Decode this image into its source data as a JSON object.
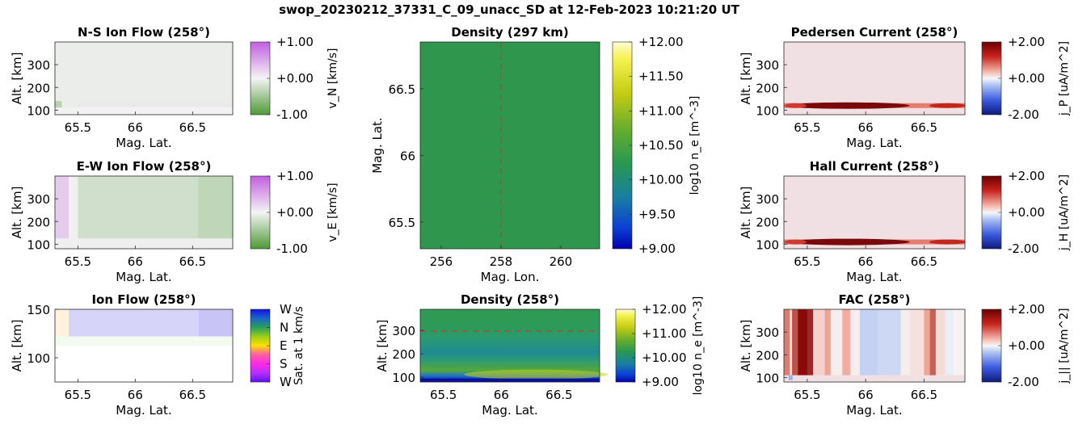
{
  "figure": {
    "title": "swop_20230212_37331_C_09_unacc_SD at 12-Feb-2023 10:21:20 UT"
  },
  "chart_data": [
    {
      "id": "ns-ion-flow",
      "type": "heatmap",
      "title": "N-S Ion Flow (258°)",
      "xlabel": "Mag. Lat.",
      "ylabel": "Alt. [km]",
      "xlim": [
        65.3,
        66.85
      ],
      "ylim": [
        80,
        400
      ],
      "xticks": [
        "65.5",
        "66",
        "66.5"
      ],
      "yticks": [
        "100",
        "200",
        "300"
      ],
      "colorbar": {
        "label": "v_N [km/s]",
        "ticks": [
          "+1.00",
          "+0.00",
          "-1.00"
        ],
        "range": [
          -1,
          1
        ],
        "colormap": "purple-white-green"
      },
      "values_summary": {
        "bulk": -0.03,
        "band_100_130km": 0.08,
        "edge_low_lat": -0.6
      }
    },
    {
      "id": "ew-ion-flow",
      "type": "heatmap",
      "title": "E-W Ion Flow (258°)",
      "xlabel": "Mag. Lat.",
      "ylabel": "Alt. [km]",
      "xlim": [
        65.3,
        66.85
      ],
      "ylim": [
        80,
        400
      ],
      "xticks": [
        "65.5",
        "66",
        "66.5"
      ],
      "yticks": [
        "100",
        "200",
        "300"
      ],
      "colorbar": {
        "label": "v_E [km/s]",
        "ticks": [
          "+1.00",
          "+0.00",
          "-1.00"
        ],
        "range": [
          -1,
          1
        ],
        "colormap": "purple-white-green"
      },
      "columns": [
        {
          "lat": [
            65.3,
            65.42
          ],
          "value": 0.25
        },
        {
          "lat": [
            65.42,
            65.5
          ],
          "value": 0.0
        },
        {
          "lat": [
            65.5,
            66.55
          ],
          "value": -0.2
        },
        {
          "lat": [
            66.55,
            66.85
          ],
          "value": -0.3
        }
      ]
    },
    {
      "id": "ion-flow",
      "type": "heatmap",
      "title": "Ion Flow (258°)",
      "xlabel": "Mag. Lat.",
      "ylabel": "Alt. [km]",
      "xlim": [
        65.3,
        66.85
      ],
      "ylim": [
        75,
        150
      ],
      "xticks": [
        "65.5",
        "66",
        "66.5"
      ],
      "yticks": [
        "100",
        "150"
      ],
      "colorbar": {
        "label": "Sat. at 1 km/s",
        "ticks": [
          "W",
          "N",
          "E",
          "S",
          "W"
        ],
        "colormap": "direction-wheel"
      }
    },
    {
      "id": "density-297km",
      "type": "heatmap",
      "title": "Density (297 km)",
      "xlabel": "Mag. Lon.",
      "ylabel": "Mag. Lat.",
      "xlim": [
        255.3,
        261.3
      ],
      "ylim": [
        65.3,
        66.85
      ],
      "xticks": [
        "256",
        "258",
        "260"
      ],
      "yticks": [
        "65.5",
        "66",
        "66.5"
      ],
      "marker_lon": 258,
      "values_summary": {
        "log10_ne": 10.6
      },
      "colorbar": {
        "label": "log10 n_e [m^-3]",
        "ticks": [
          "+12.00",
          "+11.50",
          "+11.00",
          "+10.50",
          "+10.00",
          "+9.50",
          "+9.00"
        ],
        "range": [
          9,
          12
        ],
        "colormap": "parula"
      }
    },
    {
      "id": "density-258",
      "type": "heatmap",
      "title": "Density (258°)",
      "xlabel": "Mag. Lat.",
      "ylabel": "Alt. [km]",
      "xlim": [
        65.3,
        66.85
      ],
      "ylim": [
        80,
        390
      ],
      "xticks": [
        "65.5",
        "66",
        "66.5"
      ],
      "yticks": [
        "100",
        "200",
        "300"
      ],
      "marker_alt": 297,
      "profile": [
        {
          "alt": 90,
          "log10_ne": 9.0
        },
        {
          "alt": 100,
          "log10_ne": 9.6
        },
        {
          "alt": 120,
          "log10_ne": 10.8
        },
        {
          "alt": 200,
          "log10_ne": 10.1
        },
        {
          "alt": 300,
          "log10_ne": 10.6
        },
        {
          "alt": 390,
          "log10_ne": 10.5
        }
      ],
      "colorbar": {
        "label": "log10 n_e [m^-3]",
        "ticks": [
          "+12.00",
          "+11.00",
          "+10.00",
          "+9.00"
        ],
        "range": [
          9,
          12
        ],
        "colormap": "parula"
      }
    },
    {
      "id": "pedersen-current",
      "type": "heatmap",
      "title": "Pedersen Current (258°)",
      "xlabel": "Mag. Lat.",
      "ylabel": "Alt. [km]",
      "xlim": [
        65.3,
        66.85
      ],
      "ylim": [
        80,
        400
      ],
      "xticks": [
        "65.5",
        "66",
        "66.5"
      ],
      "yticks": [
        "100",
        "200",
        "300"
      ],
      "band_alt": 120,
      "band_peak_lat": 65.85,
      "colorbar": {
        "label": "j_P [uA/m^2]",
        "ticks": [
          "+2.00",
          "+0.00",
          "-2.00"
        ],
        "range": [
          -2,
          2
        ],
        "colormap": "blue-white-red"
      }
    },
    {
      "id": "hall-current",
      "type": "heatmap",
      "title": "Hall Current (258°)",
      "xlabel": "Mag. Lat.",
      "ylabel": "Alt. [km]",
      "xlim": [
        65.3,
        66.85
      ],
      "ylim": [
        80,
        400
      ],
      "xticks": [
        "65.5",
        "66",
        "66.5"
      ],
      "yticks": [
        "100",
        "200",
        "300"
      ],
      "band_alt": 110,
      "band_peak_lat": 65.85,
      "colorbar": {
        "label": "j_H [uA/m^2]",
        "ticks": [
          "+2.00",
          "+0.00",
          "-2.00"
        ],
        "range": [
          -2,
          2
        ],
        "colormap": "blue-white-red"
      }
    },
    {
      "id": "fac",
      "type": "heatmap",
      "title": "FAC (258°)",
      "xlabel": "Mag. Lat.",
      "ylabel": "Alt. [km]",
      "xlim": [
        65.3,
        66.85
      ],
      "ylim": [
        80,
        400
      ],
      "xticks": [
        "65.5",
        "66",
        "66.5"
      ],
      "yticks": [
        "100",
        "200",
        "300"
      ],
      "columns": [
        {
          "lat": [
            65.3,
            65.35
          ],
          "value": 1.2
        },
        {
          "lat": [
            65.35,
            65.37
          ],
          "value": 0.3
        },
        {
          "lat": [
            65.37,
            65.42
          ],
          "value": 1.5
        },
        {
          "lat": [
            65.42,
            65.5
          ],
          "value": 2.0
        },
        {
          "lat": [
            65.5,
            65.55
          ],
          "value": 1.8
        },
        {
          "lat": [
            65.55,
            65.65
          ],
          "value": 0.4
        },
        {
          "lat": [
            65.65,
            65.7
          ],
          "value": 0.9
        },
        {
          "lat": [
            65.7,
            65.8
          ],
          "value": 0.1
        },
        {
          "lat": [
            65.8,
            65.87
          ],
          "value": 0.8
        },
        {
          "lat": [
            65.87,
            65.95
          ],
          "value": 0.1
        },
        {
          "lat": [
            65.95,
            66.1
          ],
          "value": -0.6
        },
        {
          "lat": [
            66.1,
            66.3
          ],
          "value": -0.5
        },
        {
          "lat": [
            66.3,
            66.38
          ],
          "value": 0.1
        },
        {
          "lat": [
            66.38,
            66.5
          ],
          "value": 0.25
        },
        {
          "lat": [
            66.5,
            66.55
          ],
          "value": 0.9
        },
        {
          "lat": [
            66.55,
            66.6
          ],
          "value": 1.4
        },
        {
          "lat": [
            66.6,
            66.68
          ],
          "value": 0.3
        },
        {
          "lat": [
            66.68,
            66.75
          ],
          "value": -0.15
        },
        {
          "lat": [
            66.75,
            66.85
          ],
          "value": 0.05
        }
      ],
      "colorbar": {
        "label": "j_|| [uA/m^2]",
        "ticks": [
          "+2.00",
          "+0.00",
          "-2.00"
        ],
        "range": [
          -2,
          2
        ],
        "colormap": "blue-white-red"
      }
    }
  ]
}
